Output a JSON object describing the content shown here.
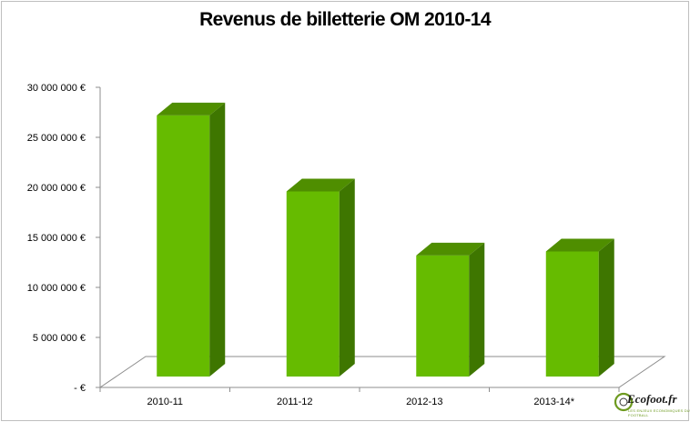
{
  "chart_data": {
    "type": "bar",
    "title": "Revenus de billetterie OM 2010-14",
    "categories": [
      "2010-11",
      "2011-12",
      "2012-13",
      "2013-14*"
    ],
    "values": [
      26100000,
      18500000,
      12100000,
      12500000
    ],
    "ylim": [
      0,
      30000000
    ],
    "yticks": [
      0,
      5000000,
      10000000,
      15000000,
      20000000,
      25000000,
      30000000
    ],
    "ytick_labels": [
      "-  €",
      "5 000 000 €",
      "10 000 000 €",
      "15 000 000 €",
      "20 000 000 €",
      "25 000 000 €",
      "30 000 000 €"
    ],
    "xlabel": "",
    "ylabel": "",
    "grid": false,
    "legend": "none",
    "style": "3d-column"
  },
  "colors": {
    "bar_front": "#66bb00",
    "bar_top": "#4f8e00",
    "bar_side": "#3e7600",
    "floor": "#ffffff",
    "axis": "#8c8c8c"
  },
  "watermark": {
    "text": "Ecofoot.fr",
    "tagline": "LES ENJEUX ECONOMIQUES DU FOOTBALL"
  }
}
